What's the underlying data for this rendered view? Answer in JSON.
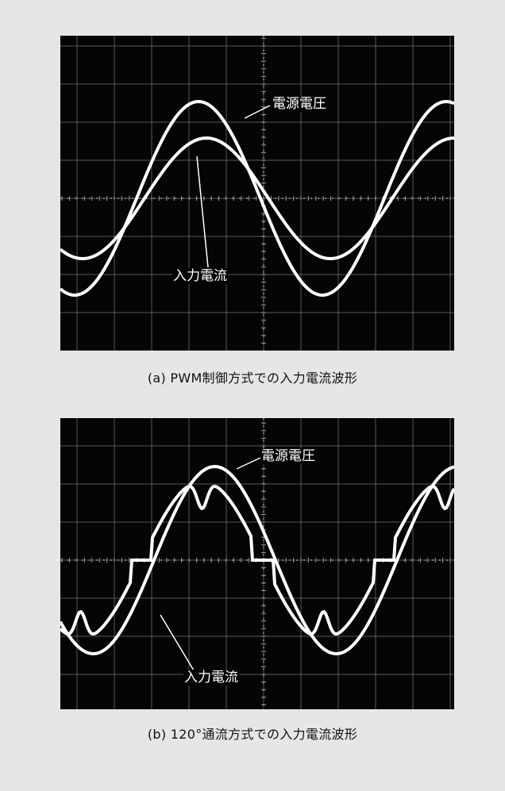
{
  "figure_a": {
    "caption": "(a) PWM制御方式での入力電流波形",
    "label_voltage": "電源電圧",
    "label_current": "入力電流"
  },
  "figure_b": {
    "caption": "(b) 120°通流方式での入力電流波形",
    "label_voltage": "電源電圧",
    "label_current": "入力電流"
  },
  "colors": {
    "background": "#e6e6e6",
    "screen": "#050505",
    "trace": "#ffffff",
    "grid": "#9a9a9a"
  }
}
